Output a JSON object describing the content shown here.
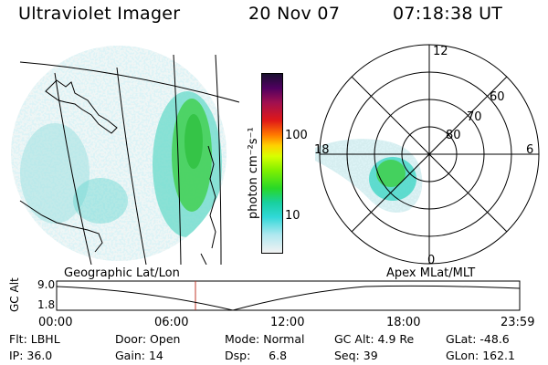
{
  "header": {
    "title": "Ultraviolet Imager",
    "date": "20 Nov 07",
    "time": "07:18:38 UT"
  },
  "colorbar": {
    "label": "photon cm⁻²s⁻¹",
    "ticks": [
      "100",
      "10"
    ]
  },
  "polar_plot": {
    "mlt_labels": [
      "12",
      "18",
      "6",
      "0"
    ],
    "lat_labels": [
      "60",
      "70",
      "80"
    ]
  },
  "panel_labels": {
    "left": "Geographic Lat/Lon",
    "right": "Apex  MLat/MLT"
  },
  "altitude_plot": {
    "axis_label": "GC Alt",
    "y_ticks": [
      "9.0",
      "1.8"
    ],
    "x_ticks": [
      "00:00",
      "06:00",
      "12:00",
      "18:00",
      "23:59"
    ],
    "marker_color": "#c0392b"
  },
  "info": {
    "row1": [
      {
        "label": "Flt:",
        "value": "LBHL"
      },
      {
        "label": "Door:",
        "value": "Open"
      },
      {
        "label": "Mode:",
        "value": "Normal"
      },
      {
        "label": "GC Alt:",
        "value": "4.9 Re"
      },
      {
        "label": "GLat:",
        "value": "-48.6"
      }
    ],
    "row2": [
      {
        "label": "IP:",
        "value": "36.0"
      },
      {
        "label": "Gain:",
        "value": "14"
      },
      {
        "label": "Dsp:",
        "value": "6.8"
      },
      {
        "label": "Seq:",
        "value": "39"
      },
      {
        "label": "GLon:",
        "value": "162.1"
      }
    ]
  },
  "colors": {
    "aurora_low": "#bfe8ec",
    "aurora_mid": "#33d3c2",
    "aurora_high": "#3fcf4a"
  }
}
